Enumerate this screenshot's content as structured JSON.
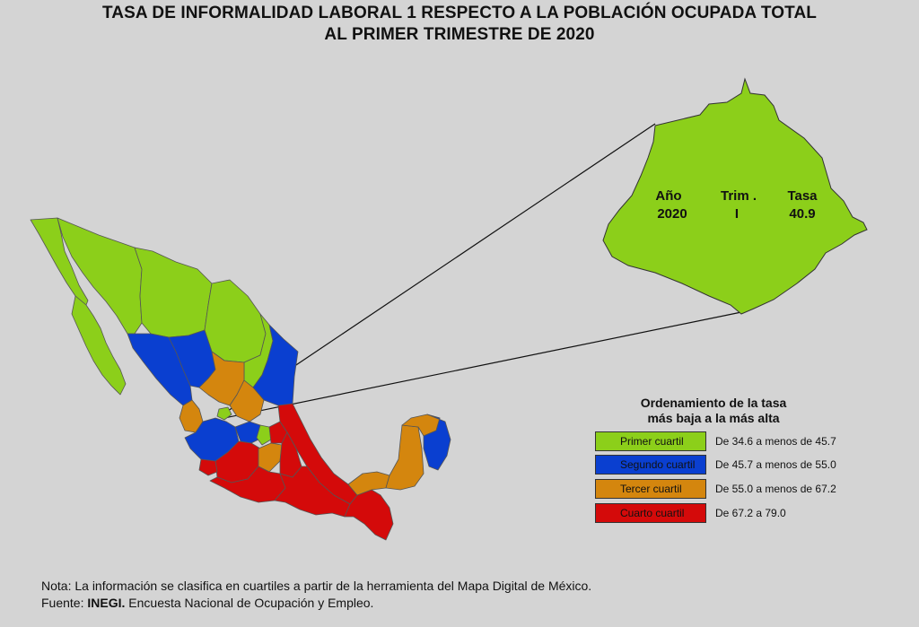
{
  "title": {
    "line1": "TASA DE INFORMALIDAD LABORAL 1 RESPECTO A LA POBLACIÓN OCUPADA TOTAL",
    "line2": "AL PRIMER TRIMESTRE DE 2020"
  },
  "inset": {
    "year_label": "Año",
    "year_value": "2020",
    "trim_label": "Trim .",
    "trim_value": "I",
    "rate_label": "Tasa",
    "rate_value": "40.9",
    "region_color": "#8ccf1a"
  },
  "legend": {
    "title_line1": "Ordenamiento de la tasa",
    "title_line2": "más baja a la más alta",
    "items": [
      {
        "label": "Primer cuartil",
        "range": "De 34.6  a menos de 45.7",
        "color": "#8ccf1a"
      },
      {
        "label": "Segundo cuartil",
        "range": "De 45.7  a menos de 55.0",
        "color": "#0a3fd0"
      },
      {
        "label": "Tercer cuartil",
        "range": "De 55.0  a menos de 67.2",
        "color": "#d4860e"
      },
      {
        "label": "Cuarto cuartil",
        "range": "De 67.2  a 79.0",
        "color": "#d40a0a"
      }
    ]
  },
  "footer": {
    "note": "Nota: La información se clasifica en cuartiles a partir de la herramienta del Mapa Digital de México.",
    "source_prefix": "Fuente: ",
    "source_org": "INEGI.",
    "source_rest": " Encuesta Nacional de Ocupación y Empleo."
  }
}
